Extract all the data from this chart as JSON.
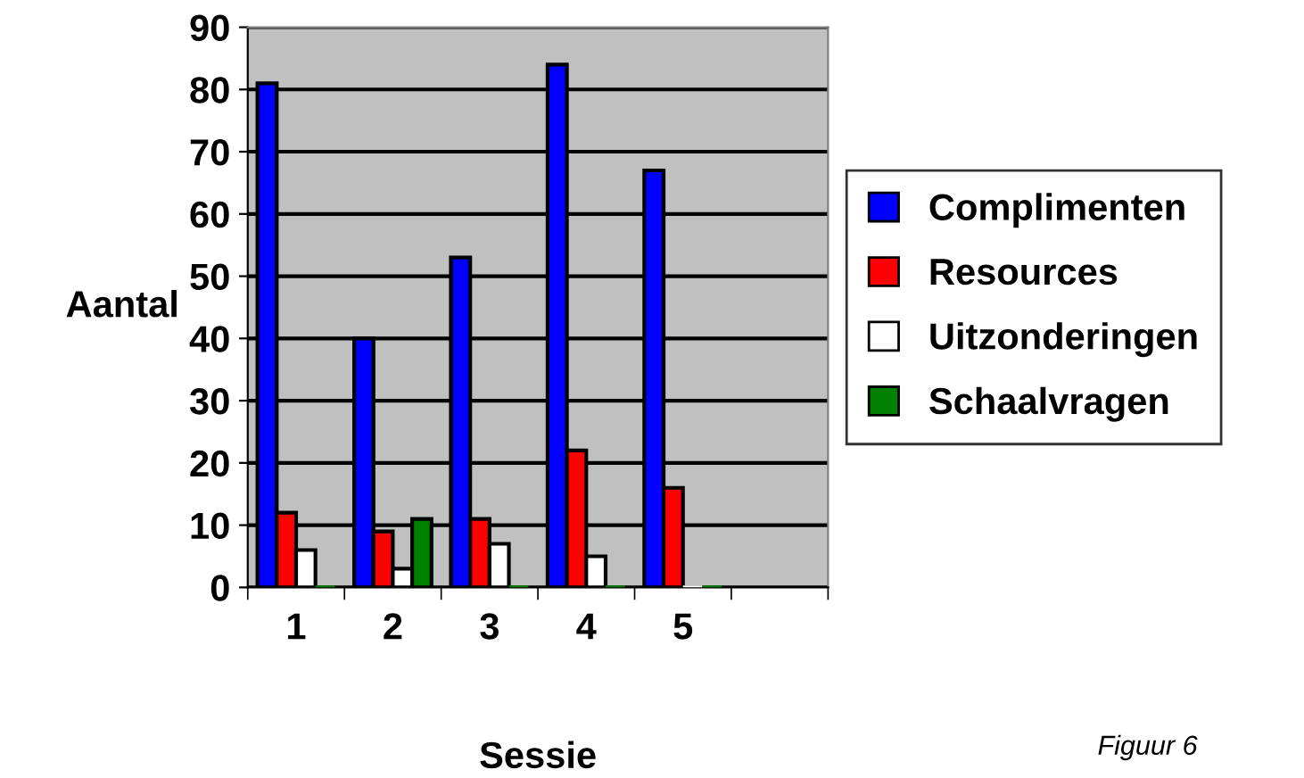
{
  "chart_data": {
    "type": "bar",
    "xlabel": "Sessie",
    "ylabel": "Aantal",
    "categories": [
      "1",
      "2",
      "3",
      "4",
      "5",
      null
    ],
    "series": [
      {
        "name": "Complimenten",
        "color": "#0000ff",
        "values": [
          81,
          40,
          53,
          84,
          67,
          null
        ]
      },
      {
        "name": "Resources",
        "color": "#ff0000",
        "values": [
          12,
          9,
          11,
          22,
          16,
          null
        ]
      },
      {
        "name": "Uitzonderingen",
        "color": "#ffffff",
        "values": [
          6,
          3,
          7,
          5,
          0,
          null
        ]
      },
      {
        "name": "Schaalvragen",
        "color": "#008000",
        "values": [
          0,
          11,
          0,
          0,
          0,
          null
        ]
      }
    ],
    "ylim": [
      0,
      90
    ],
    "yticks": [
      0,
      10,
      20,
      30,
      40,
      50,
      60,
      70,
      80,
      90
    ],
    "grid": "y",
    "legend": "right",
    "annotations": [
      "Figuur 6"
    ]
  }
}
